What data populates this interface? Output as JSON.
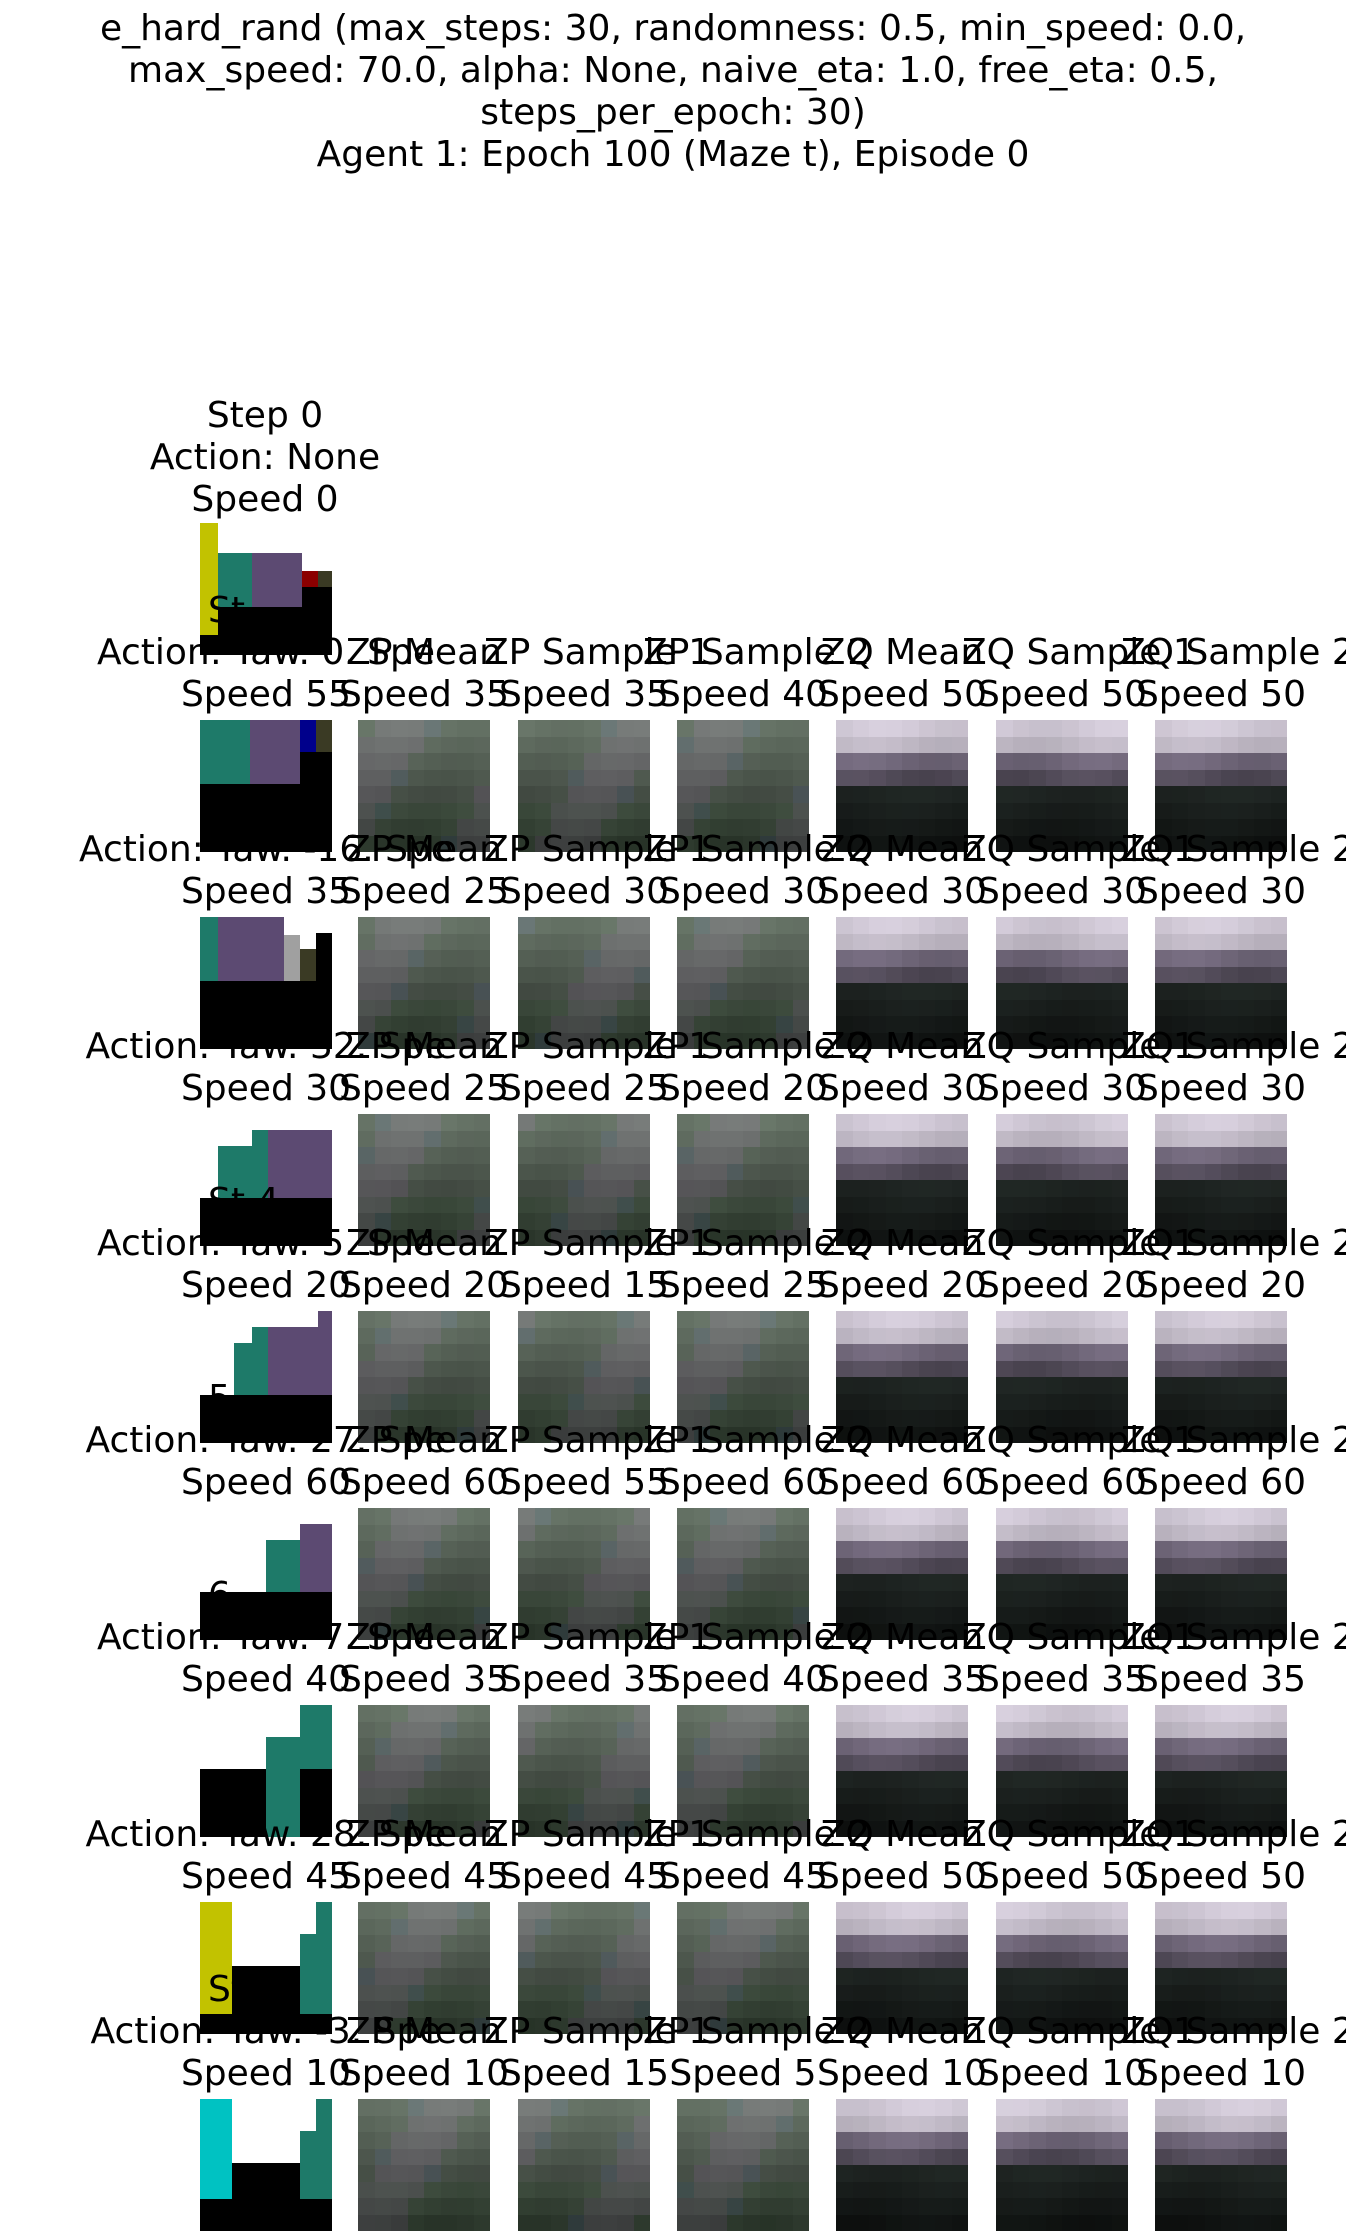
{
  "title_lines": [
    "e_hard_rand (max_steps: 30, randomness: 0.5, min_speed: 0.0,",
    "max_speed: 70.0, alpha: None, naive_eta: 1.0, free_eta: 0.5,",
    "steps_per_epoch: 30)",
    "Agent 1: Epoch 100 (Maze t), Episode 0"
  ],
  "step0": {
    "step": "Step 0",
    "action": "Action: None",
    "speed": "Speed 0",
    "overlay": "St"
  },
  "rows": [
    {
      "action": "Action: Yaw. 0. Spe",
      "speed": "Speed 55",
      "overlay": "St",
      "samples": [
        {
          "label": "ZP Mean",
          "speed": "Speed 35"
        },
        {
          "label": "ZP Sample 1",
          "speed": "Speed 35"
        },
        {
          "label": "ZP Sample 2",
          "speed": "Speed 40"
        },
        {
          "label": "ZQ Mean",
          "speed": "Speed 50"
        },
        {
          "label": "ZQ Sample 1",
          "speed": "Speed 50"
        },
        {
          "label": "ZQ Sample 2",
          "speed": "Speed 50"
        }
      ]
    },
    {
      "action": "Action: Yaw. -16. Spe",
      "speed": "Speed 35",
      "overlay": "St",
      "samples": [
        {
          "label": "ZP Mean",
          "speed": "Speed 25"
        },
        {
          "label": "ZP Sample 1",
          "speed": "Speed 30"
        },
        {
          "label": "ZP Sample 2",
          "speed": "Speed 30"
        },
        {
          "label": "ZQ Mean",
          "speed": "Speed 30"
        },
        {
          "label": "ZQ Sample 1",
          "speed": "Speed 30"
        },
        {
          "label": "ZQ Sample 2",
          "speed": "Speed 30"
        }
      ]
    },
    {
      "action": "Action: Yaw. 32. Spe",
      "speed": "Speed 30",
      "overlay": "St    4",
      "samples": [
        {
          "label": "ZP Mean",
          "speed": "Speed 25"
        },
        {
          "label": "ZP Sample 1",
          "speed": "Speed 25"
        },
        {
          "label": "ZP Sample 2",
          "speed": "Speed 20"
        },
        {
          "label": "ZQ Mean",
          "speed": "Speed 30"
        },
        {
          "label": "ZQ Sample 1",
          "speed": "Speed 30"
        },
        {
          "label": "ZQ Sample 2",
          "speed": "Speed 30"
        }
      ]
    },
    {
      "action": "Action: Yaw. 5. Spe",
      "speed": "Speed 20",
      "overlay": "5",
      "samples": [
        {
          "label": "ZP Mean",
          "speed": "Speed 20"
        },
        {
          "label": "ZP Sample 1",
          "speed": "Speed 15"
        },
        {
          "label": "ZP Sample 2",
          "speed": "Speed 25"
        },
        {
          "label": "ZQ Mean",
          "speed": "Speed 20"
        },
        {
          "label": "ZQ Sample 1",
          "speed": "Speed 20"
        },
        {
          "label": "ZQ Sample 2",
          "speed": "Speed 20"
        }
      ]
    },
    {
      "action": "Action: Yaw. 27. Spe",
      "speed": "Speed 60",
      "overlay": "6",
      "samples": [
        {
          "label": "ZP Mean",
          "speed": "Speed 60"
        },
        {
          "label": "ZP Sample 1",
          "speed": "Speed 55"
        },
        {
          "label": "ZP Sample 2",
          "speed": "Speed 60"
        },
        {
          "label": "ZQ Mean",
          "speed": "Speed 60"
        },
        {
          "label": "ZQ Sample 1",
          "speed": "Speed 60"
        },
        {
          "label": "ZQ Sample 2",
          "speed": "Speed 60"
        }
      ]
    },
    {
      "action": "Action: Yaw. 7. Spe",
      "speed": "Speed 40",
      "overlay": "7",
      "samples": [
        {
          "label": "ZP Mean",
          "speed": "Speed 35"
        },
        {
          "label": "ZP Sample 1",
          "speed": "Speed 35"
        },
        {
          "label": "ZP Sample 2",
          "speed": "Speed 40"
        },
        {
          "label": "ZQ Mean",
          "speed": "Speed 35"
        },
        {
          "label": "ZQ Sample 1",
          "speed": "Speed 35"
        },
        {
          "label": "ZQ Sample 2",
          "speed": "Speed 35"
        }
      ]
    },
    {
      "action": "Action: Yaw. 28. Spe",
      "speed": "Speed 45",
      "overlay": "St   8",
      "samples": [
        {
          "label": "ZP Mean",
          "speed": "Speed 45"
        },
        {
          "label": "ZP Sample 1",
          "speed": "Speed 45"
        },
        {
          "label": "ZP Sample 2",
          "speed": "Speed 45"
        },
        {
          "label": "ZQ Mean",
          "speed": "Speed 50"
        },
        {
          "label": "ZQ Sample 1",
          "speed": "Speed 50"
        },
        {
          "label": "ZQ Sample 2",
          "speed": "Speed 50"
        }
      ]
    },
    {
      "action": "Action: Yaw. -3. Spe",
      "speed": "Speed 10",
      "overlay": "",
      "samples": [
        {
          "label": "ZP Mean",
          "speed": "Speed 10"
        },
        {
          "label": "ZP Sample 1",
          "speed": "Speed 15"
        },
        {
          "label": "ZP Sample 2",
          "speed": "Speed 5"
        },
        {
          "label": "ZQ Mean",
          "speed": "Speed 10"
        },
        {
          "label": "ZQ Sample 1",
          "speed": "Speed 10"
        },
        {
          "label": "ZQ Sample 2",
          "speed": "Speed 10"
        }
      ]
    }
  ],
  "colors": {
    "teal": "#1e7a69",
    "purple": "#5c4a72",
    "yellow": "#c2c200",
    "cyan": "#00c2c2",
    "dark_red": "#8b0000",
    "navy": "#00008b",
    "olive_dark": "#3a3a24",
    "gray": "#a0a0a0",
    "black": "#000000",
    "zp_base": "#5e6a5e",
    "zq_sky": "#d8d0de"
  }
}
